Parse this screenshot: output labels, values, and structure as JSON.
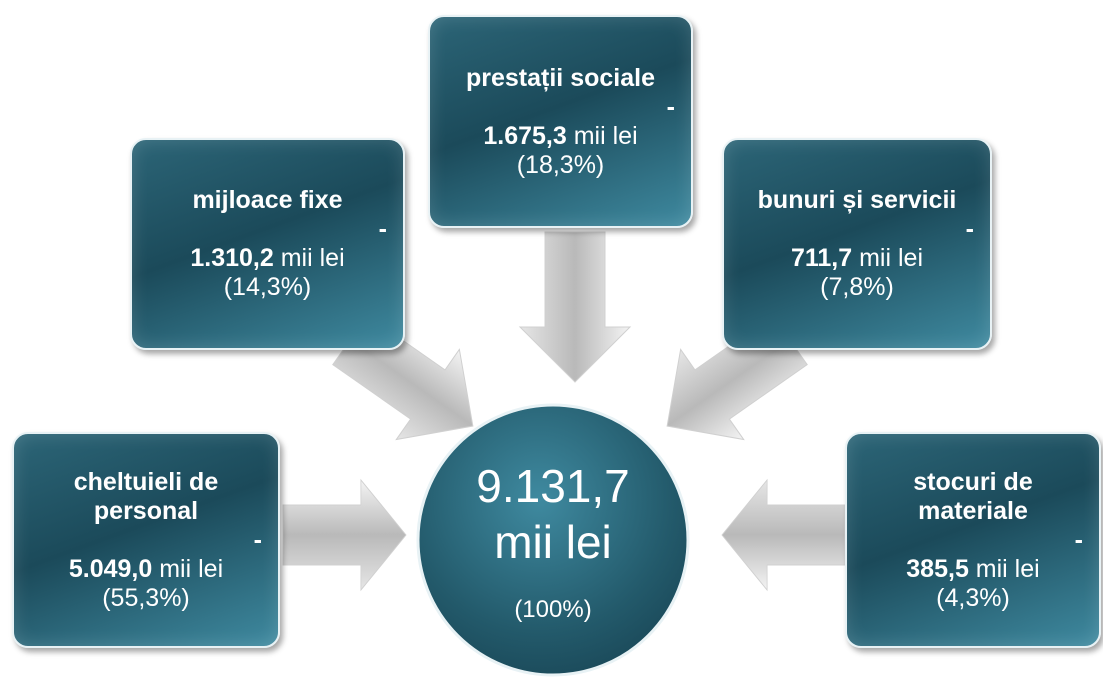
{
  "center": {
    "amount": "9.131,7",
    "unit": "mii lei",
    "share": "(100%)"
  },
  "nodes": [
    {
      "label": "prestații sociale",
      "separator": "-",
      "amount": "1.675,3",
      "unit": "mii lei",
      "share": "(18,3%)"
    },
    {
      "label": "mijloace fixe",
      "separator": "-",
      "amount": "1.310,2",
      "unit": "mii lei",
      "share": "(14,3%)"
    },
    {
      "label": "bunuri și servicii",
      "separator": "-",
      "amount": "711,7",
      "unit": "mii lei",
      "share": "(7,8%)"
    },
    {
      "label": "cheltuieli de personal",
      "separator": "-",
      "amount": "5.049,0",
      "unit": "mii lei",
      "share": "(55,3%)"
    },
    {
      "label": "stocuri de materiale",
      "separator": "-",
      "amount": "385,5",
      "unit": "mii lei",
      "share": "(4,3%)"
    }
  ]
}
